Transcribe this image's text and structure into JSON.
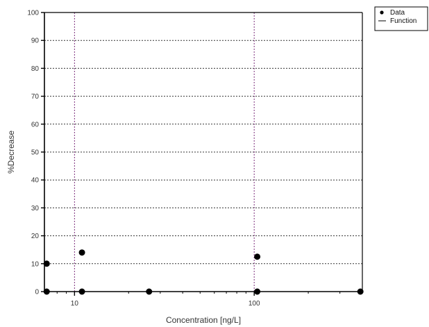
{
  "chart_data": {
    "type": "scatter",
    "xlabel": "Concentration [ng/L]",
    "ylabel": "%Decrease",
    "x_scale": "log",
    "xlim": [
      6.8,
      400
    ],
    "ylim": [
      0,
      100
    ],
    "x_ticks": [
      10,
      100
    ],
    "x_tick_labels": [
      "10",
      "100"
    ],
    "y_ticks": [
      0,
      10,
      20,
      30,
      40,
      50,
      60,
      70,
      80,
      90,
      100
    ],
    "y_tick_labels": [
      "0",
      "10",
      "20",
      "30",
      "40",
      "50",
      "60",
      "70",
      "80",
      "90",
      "100"
    ],
    "grid": true,
    "legend": {
      "placement": "top-right-outside",
      "entries": [
        {
          "label": "Data",
          "marker": "dot"
        },
        {
          "label": "Function",
          "marker": "line"
        }
      ]
    },
    "series": [
      {
        "name": "Data",
        "marker": "dot",
        "color": "#000000",
        "points": [
          {
            "x": 7,
            "y": 10
          },
          {
            "x": 7,
            "y": 0
          },
          {
            "x": 11,
            "y": 14
          },
          {
            "x": 11,
            "y": 0
          },
          {
            "x": 26,
            "y": 0
          },
          {
            "x": 104,
            "y": 12.5
          },
          {
            "x": 104,
            "y": 0
          },
          {
            "x": 390,
            "y": 0
          }
        ]
      }
    ],
    "colors": {
      "major_grid": "#7b2c7b",
      "minor_grid": "#333333",
      "axis": "#000000",
      "tick_text": "#333333"
    }
  }
}
